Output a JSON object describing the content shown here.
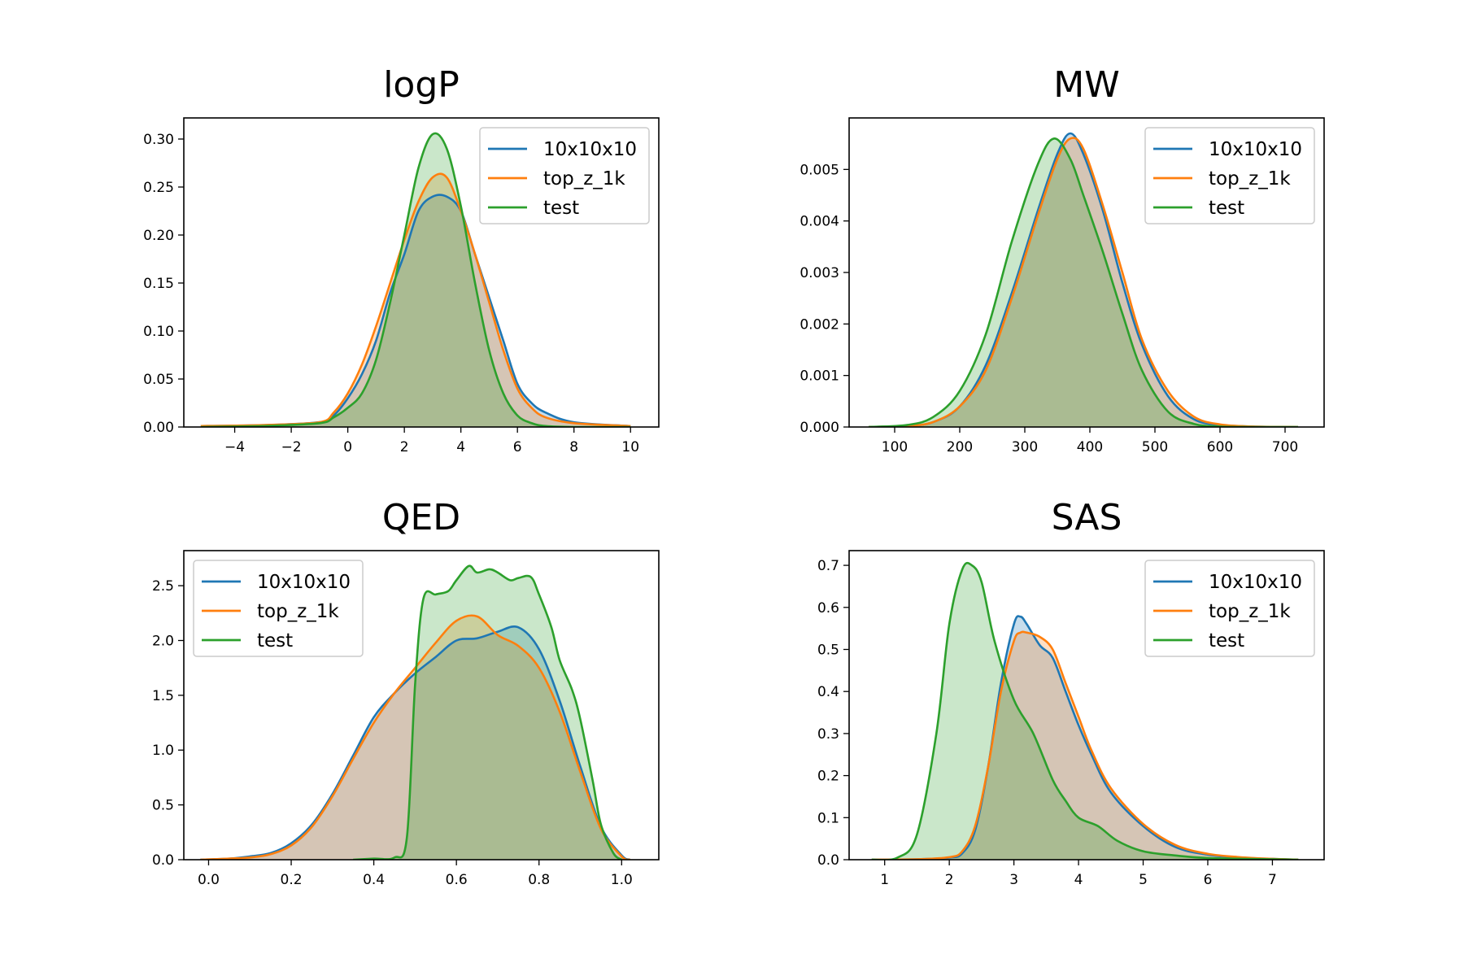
{
  "chart_data": [
    {
      "type": "area",
      "title": "logP",
      "xlim": [
        -5.8,
        11.0
      ],
      "ylim": [
        0,
        0.322
      ],
      "xticks": [
        -4,
        -2,
        0,
        2,
        4,
        6,
        8,
        10
      ],
      "xtick_labels": [
        "−4",
        "−2",
        "0",
        "2",
        "4",
        "6",
        "8",
        "10"
      ],
      "yticks": [
        0,
        0.05,
        0.1,
        0.15,
        0.2,
        0.25,
        0.3
      ],
      "ytick_labels": [
        "0.00",
        "0.05",
        "0.10",
        "0.15",
        "0.20",
        "0.25",
        "0.30"
      ],
      "legend_position": "top-right",
      "series": [
        {
          "name": "10x10x10",
          "color": "#1f77b4",
          "x": [
            -5.2,
            -3,
            -1,
            -0.5,
            0,
            0.5,
            1,
            1.5,
            2,
            2.5,
            3,
            3.5,
            4,
            4.5,
            5,
            5.5,
            6,
            6.5,
            7,
            8,
            10
          ],
          "values": [
            0.001,
            0.002,
            0.005,
            0.012,
            0.03,
            0.055,
            0.09,
            0.14,
            0.18,
            0.225,
            0.24,
            0.24,
            0.225,
            0.18,
            0.135,
            0.09,
            0.045,
            0.025,
            0.015,
            0.005,
            0.001
          ]
        },
        {
          "name": "top_z_1k",
          "color": "#ff7f0e",
          "x": [
            -5.2,
            -3,
            -1,
            -0.5,
            0,
            0.5,
            1,
            1.5,
            2,
            2.5,
            3,
            3.5,
            4,
            4.5,
            5,
            5.5,
            6,
            6.5,
            7,
            8,
            10
          ],
          "values": [
            0.001,
            0.002,
            0.005,
            0.015,
            0.035,
            0.065,
            0.105,
            0.15,
            0.195,
            0.235,
            0.26,
            0.26,
            0.225,
            0.18,
            0.13,
            0.08,
            0.04,
            0.02,
            0.01,
            0.004,
            0.001
          ]
        },
        {
          "name": "test",
          "color": "#2ca02c",
          "x": [
            -5.2,
            -3,
            -1,
            -0.5,
            0,
            0.5,
            1,
            1.5,
            2,
            2.5,
            3,
            3.5,
            4,
            4.5,
            5,
            5.5,
            6,
            6.5,
            7,
            8,
            10
          ],
          "values": [
            0,
            0.001,
            0.004,
            0.01,
            0.02,
            0.035,
            0.07,
            0.13,
            0.2,
            0.27,
            0.305,
            0.29,
            0.23,
            0.15,
            0.08,
            0.035,
            0.012,
            0.004,
            0.001,
            0,
            0
          ]
        }
      ]
    },
    {
      "type": "area",
      "title": "MW",
      "xlim": [
        30,
        760
      ],
      "ylim": [
        0,
        0.006
      ],
      "xticks": [
        100,
        200,
        300,
        400,
        500,
        600,
        700
      ],
      "xtick_labels": [
        "100",
        "200",
        "300",
        "400",
        "500",
        "600",
        "700"
      ],
      "yticks": [
        0,
        0.001,
        0.002,
        0.003,
        0.004,
        0.005
      ],
      "ytick_labels": [
        "0.000",
        "0.001",
        "0.002",
        "0.003",
        "0.004",
        "0.005"
      ],
      "legend_position": "top-right",
      "series": [
        {
          "name": "10x10x10",
          "color": "#1f77b4",
          "x": [
            60,
            120,
            160,
            200,
            240,
            280,
            320,
            350,
            370,
            390,
            420,
            450,
            480,
            520,
            560,
            600,
            650,
            720
          ],
          "values": [
            0,
            2e-05,
            0.0001,
            0.0004,
            0.0012,
            0.0026,
            0.0042,
            0.0053,
            0.0057,
            0.0053,
            0.0042,
            0.0028,
            0.0016,
            0.0006,
            0.00015,
            4e-05,
            1e-05,
            0
          ]
        },
        {
          "name": "top_z_1k",
          "color": "#ff7f0e",
          "x": [
            60,
            120,
            160,
            200,
            240,
            280,
            320,
            350,
            370,
            390,
            420,
            450,
            480,
            520,
            560,
            600,
            650,
            720
          ],
          "values": [
            0,
            2e-05,
            0.0001,
            0.0004,
            0.0011,
            0.0025,
            0.0041,
            0.0052,
            0.0056,
            0.0054,
            0.0043,
            0.003,
            0.0017,
            0.0007,
            0.0002,
            5e-05,
            1e-05,
            0
          ]
        },
        {
          "name": "test",
          "color": "#2ca02c",
          "x": [
            60,
            120,
            160,
            200,
            240,
            280,
            320,
            345,
            370,
            390,
            420,
            450,
            480,
            520,
            560,
            600,
            650,
            720
          ],
          "values": [
            0,
            4e-05,
            0.0002,
            0.0007,
            0.0018,
            0.0036,
            0.0051,
            0.0056,
            0.0052,
            0.0045,
            0.0034,
            0.0022,
            0.0011,
            0.0003,
            6e-05,
            1e-05,
            0,
            0
          ]
        }
      ]
    },
    {
      "type": "area",
      "title": "QED",
      "xlim": [
        -0.06,
        1.09
      ],
      "ylim": [
        0,
        2.82
      ],
      "xticks": [
        0.0,
        0.2,
        0.4,
        0.6,
        0.8,
        1.0
      ],
      "xtick_labels": [
        "0.0",
        "0.2",
        "0.4",
        "0.6",
        "0.8",
        "1.0"
      ],
      "yticks": [
        0,
        0.5,
        1.0,
        1.5,
        2.0,
        2.5
      ],
      "ytick_labels": [
        "0.0",
        "0.5",
        "1.0",
        "1.5",
        "2.0",
        "2.5"
      ],
      "legend_position": "top-left",
      "series": [
        {
          "name": "10x10x10",
          "color": "#1f77b4",
          "x": [
            -0.02,
            0.05,
            0.1,
            0.15,
            0.2,
            0.25,
            0.3,
            0.35,
            0.4,
            0.45,
            0.5,
            0.55,
            0.6,
            0.65,
            0.7,
            0.75,
            0.8,
            0.85,
            0.9,
            0.95,
            1.0,
            1.02
          ],
          "values": [
            0,
            0.01,
            0.03,
            0.06,
            0.15,
            0.32,
            0.6,
            0.95,
            1.3,
            1.52,
            1.7,
            1.85,
            2.0,
            2.02,
            2.08,
            2.12,
            1.92,
            1.45,
            0.85,
            0.3,
            0.04,
            0
          ]
        },
        {
          "name": "top_z_1k",
          "color": "#ff7f0e",
          "x": [
            -0.02,
            0.05,
            0.1,
            0.15,
            0.2,
            0.25,
            0.3,
            0.35,
            0.4,
            0.45,
            0.5,
            0.55,
            0.6,
            0.65,
            0.7,
            0.75,
            0.8,
            0.85,
            0.9,
            0.95,
            1.0,
            1.02
          ],
          "values": [
            0,
            0.01,
            0.02,
            0.05,
            0.13,
            0.3,
            0.58,
            0.92,
            1.25,
            1.52,
            1.75,
            1.98,
            2.18,
            2.22,
            2.05,
            1.95,
            1.75,
            1.35,
            0.8,
            0.28,
            0.03,
            0
          ]
        },
        {
          "name": "test",
          "color": "#2ca02c",
          "x": [
            0.35,
            0.4,
            0.45,
            0.48,
            0.5,
            0.52,
            0.55,
            0.58,
            0.6,
            0.63,
            0.65,
            0.68,
            0.7,
            0.73,
            0.75,
            0.78,
            0.8,
            0.83,
            0.85,
            0.88,
            0.9,
            0.93,
            0.95,
            0.98,
            1.0
          ],
          "values": [
            0,
            0.01,
            0.02,
            0.2,
            1.6,
            2.38,
            2.42,
            2.45,
            2.55,
            2.68,
            2.62,
            2.65,
            2.62,
            2.55,
            2.57,
            2.58,
            2.42,
            2.12,
            1.82,
            1.55,
            1.28,
            0.72,
            0.32,
            0.06,
            0
          ]
        }
      ]
    },
    {
      "type": "area",
      "title": "SAS",
      "xlim": [
        0.45,
        7.8
      ],
      "ylim": [
        0,
        0.735
      ],
      "xticks": [
        1,
        2,
        3,
        4,
        5,
        6,
        7
      ],
      "xtick_labels": [
        "1",
        "2",
        "3",
        "4",
        "5",
        "6",
        "7"
      ],
      "yticks": [
        0,
        0.1,
        0.2,
        0.3,
        0.4,
        0.5,
        0.6,
        0.7
      ],
      "ytick_labels": [
        "0.0",
        "0.1",
        "0.2",
        "0.3",
        "0.4",
        "0.5",
        "0.6",
        "0.7"
      ],
      "legend_position": "top-right",
      "series": [
        {
          "name": "10x10x10",
          "color": "#1f77b4",
          "x": [
            0.8,
            1.5,
            2,
            2.2,
            2.4,
            2.6,
            2.8,
            3,
            3.1,
            3.2,
            3.4,
            3.6,
            3.8,
            4,
            4.2,
            4.5,
            5,
            5.5,
            6,
            6.5,
            7,
            7.4
          ],
          "values": [
            0,
            0.001,
            0.005,
            0.015,
            0.07,
            0.22,
            0.42,
            0.56,
            0.578,
            0.56,
            0.51,
            0.48,
            0.4,
            0.32,
            0.25,
            0.16,
            0.08,
            0.03,
            0.012,
            0.005,
            0.002,
            0
          ]
        },
        {
          "name": "top_z_1k",
          "color": "#ff7f0e",
          "x": [
            0.8,
            1.5,
            2,
            2.2,
            2.4,
            2.6,
            2.8,
            3,
            3.1,
            3.2,
            3.4,
            3.6,
            3.8,
            4,
            4.2,
            4.5,
            5,
            5.5,
            6,
            6.5,
            7,
            7.4
          ],
          "values": [
            0,
            0.001,
            0.006,
            0.02,
            0.08,
            0.22,
            0.4,
            0.52,
            0.54,
            0.54,
            0.53,
            0.5,
            0.42,
            0.34,
            0.26,
            0.17,
            0.085,
            0.035,
            0.014,
            0.006,
            0.002,
            0
          ]
        },
        {
          "name": "test",
          "color": "#2ca02c",
          "x": [
            0.8,
            1.2,
            1.5,
            1.8,
            2,
            2.2,
            2.35,
            2.5,
            2.7,
            3,
            3.3,
            3.6,
            3.8,
            4,
            4.3,
            4.6,
            5,
            5.5,
            6,
            7,
            7.4
          ],
          "values": [
            0,
            0.005,
            0.06,
            0.3,
            0.56,
            0.69,
            0.7,
            0.66,
            0.52,
            0.38,
            0.3,
            0.19,
            0.14,
            0.1,
            0.08,
            0.045,
            0.02,
            0.01,
            0.004,
            0.001,
            0
          ]
        }
      ]
    }
  ]
}
